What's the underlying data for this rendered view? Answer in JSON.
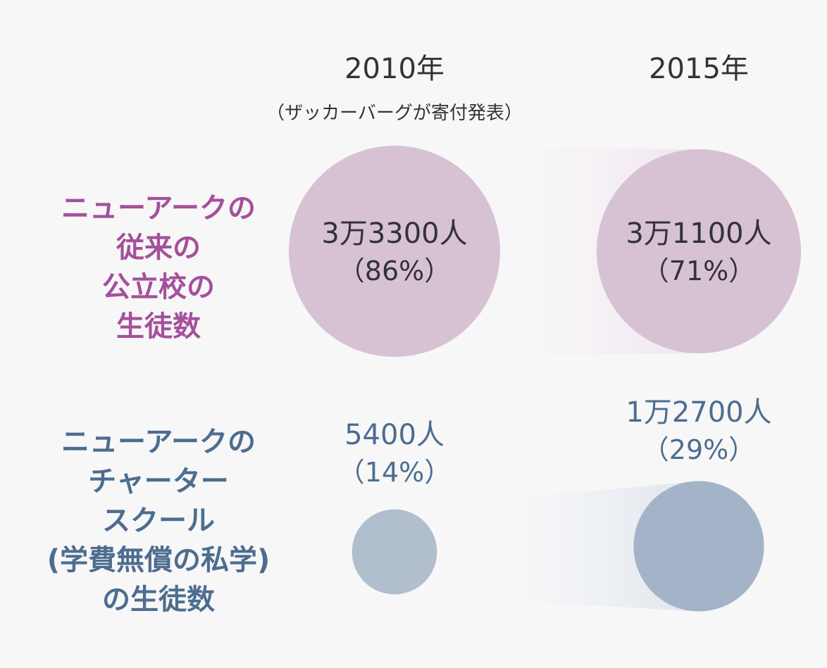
{
  "colors": {
    "background": "#f7f7f8",
    "public_fill": "#d7c2d4",
    "public_label": "#a4509b",
    "charter_fill_2010": "#b0becd",
    "charter_fill_2015": "#a3b4c9",
    "charter_label": "#4d6d8f",
    "year_text": "#333333"
  },
  "headers": {
    "year_2010": "2010年",
    "year_2010_note": "（ザッカーバーグが寄付発表）",
    "year_2015": "2015年"
  },
  "chart_data": {
    "type": "bubble",
    "categories": [
      "2010年",
      "2015年"
    ],
    "series": [
      {
        "name": "ニューアークの従来の公立校の生徒数",
        "label_lines": [
          "ニューアークの",
          "従来の",
          "公立校の",
          "生徒数"
        ],
        "values": [
          33300,
          31100
        ],
        "share_pct": [
          86,
          71
        ],
        "value_labels": [
          "3万3300人",
          "3万1100人"
        ],
        "pct_labels": [
          "（86%）",
          "（71%）"
        ]
      },
      {
        "name": "ニューアークのチャータースクール(学費無償の私学)の生徒数",
        "label_lines": [
          "ニューアークの",
          "チャーター",
          "スクール",
          "(学費無償の私学)",
          "の生徒数"
        ],
        "values": [
          5400,
          12700
        ],
        "share_pct": [
          14,
          29
        ],
        "value_labels": [
          "5400人",
          "1万2700人"
        ],
        "pct_labels": [
          "（14%）",
          "（29%）"
        ]
      }
    ]
  }
}
